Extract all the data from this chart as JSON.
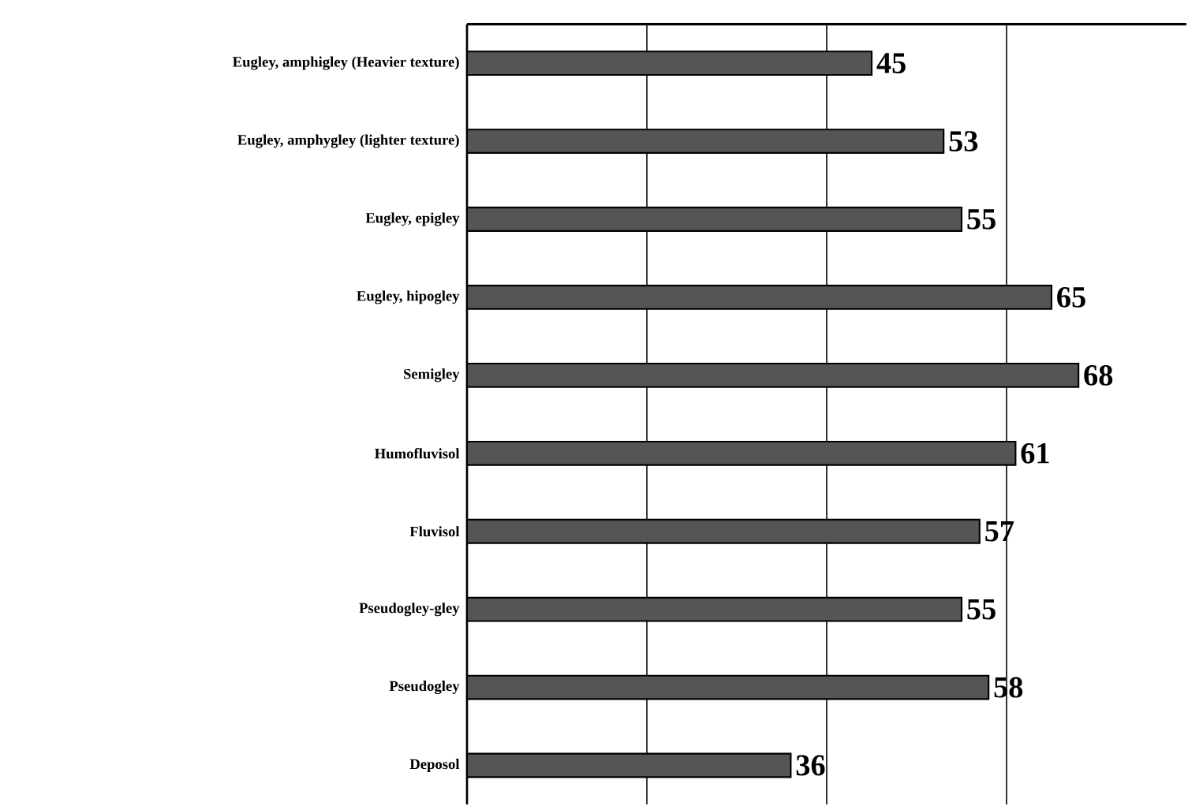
{
  "chart_data": {
    "type": "bar",
    "orientation": "horizontal",
    "categories": [
      "Eugley, amphigley (Heavier texture)",
      "Eugley, amphygley (lighter texture)",
      "Eugley, epigley",
      "Eugley, hipogley",
      "Semigley",
      "Humofluvisol",
      "Fluvisol",
      "Pseudogley-gley",
      "Pseudogley",
      "Deposol"
    ],
    "values": [
      45,
      53,
      55,
      65,
      68,
      61,
      57,
      55,
      58,
      36
    ],
    "color": "#555555",
    "data_labels": true,
    "grid": "x",
    "tick_labels": "y",
    "xlim": [
      0,
      80
    ],
    "xticks": [
      {
        "value": 20,
        "label": null
      },
      {
        "value": 40,
        "label": null
      },
      {
        "value": 60,
        "label": null
      }
    ]
  }
}
